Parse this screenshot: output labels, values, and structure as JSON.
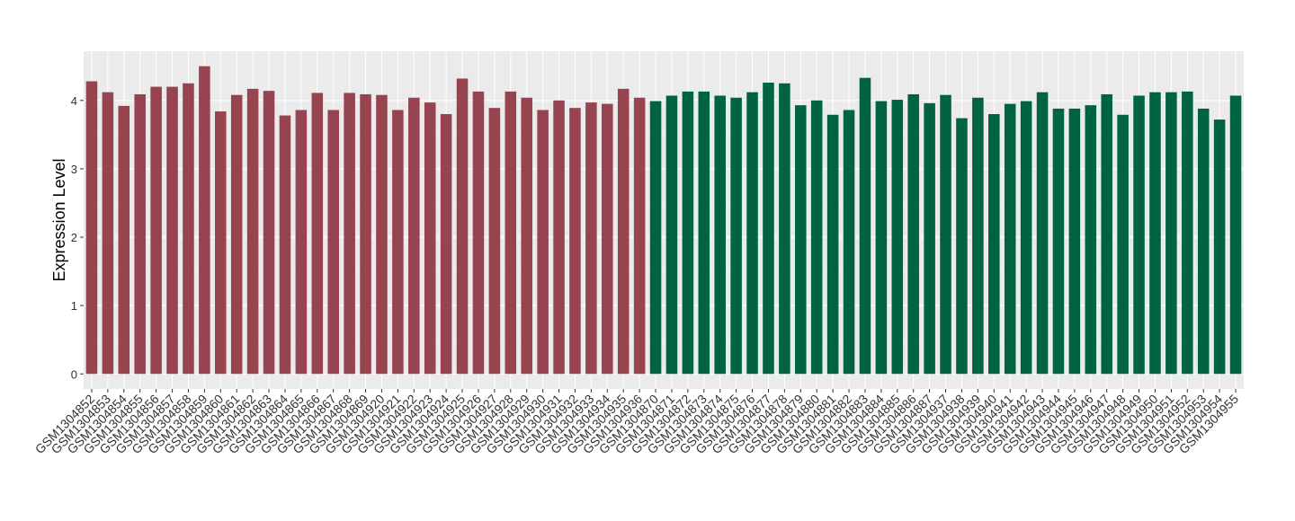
{
  "chart_data": {
    "type": "bar",
    "y_label": "Expression Level",
    "categories": [
      "GSM1304852",
      "GSM1304853",
      "GSM1304854",
      "GSM1304855",
      "GSM1304856",
      "GSM1304857",
      "GSM1304858",
      "GSM1304859",
      "GSM1304860",
      "GSM1304861",
      "GSM1304862",
      "GSM1304863",
      "GSM1304864",
      "GSM1304865",
      "GSM1304866",
      "GSM1304867",
      "GSM1304868",
      "GSM1304869",
      "GSM1304920",
      "GSM1304921",
      "GSM1304922",
      "GSM1304923",
      "GSM1304924",
      "GSM1304925",
      "GSM1304926",
      "GSM1304927",
      "GSM1304928",
      "GSM1304929",
      "GSM1304930",
      "GSM1304931",
      "GSM1304932",
      "GSM1304933",
      "GSM1304934",
      "GSM1304935",
      "GSM1304936",
      "GSM1304870",
      "GSM1304871",
      "GSM1304872",
      "GSM1304873",
      "GSM1304874",
      "GSM1304875",
      "GSM1304876",
      "GSM1304877",
      "GSM1304878",
      "GSM1304879",
      "GSM1304880",
      "GSM1304881",
      "GSM1304882",
      "GSM1304883",
      "GSM1304884",
      "GSM1304885",
      "GSM1304886",
      "GSM1304887",
      "GSM1304937",
      "GSM1304938",
      "GSM1304939",
      "GSM1304940",
      "GSM1304941",
      "GSM1304942",
      "GSM1304943",
      "GSM1304944",
      "GSM1304945",
      "GSM1304946",
      "GSM1304947",
      "GSM1304948",
      "GSM1304949",
      "GSM1304950",
      "GSM1304951",
      "GSM1304952",
      "GSM1304953",
      "GSM1304954",
      "GSM1304955"
    ],
    "values": [
      4.28,
      4.12,
      3.92,
      4.09,
      4.2,
      4.2,
      4.25,
      4.5,
      3.84,
      4.08,
      4.17,
      4.14,
      3.78,
      3.86,
      4.11,
      3.86,
      4.11,
      4.09,
      4.08,
      3.86,
      4.04,
      3.97,
      3.8,
      4.32,
      4.13,
      3.89,
      4.13,
      4.04,
      3.86,
      4.0,
      3.89,
      3.97,
      3.95,
      4.17,
      4.04,
      3.99,
      4.07,
      4.13,
      4.13,
      4.07,
      4.04,
      4.12,
      4.26,
      4.25,
      3.93,
      4.0,
      3.79,
      3.86,
      4.33,
      3.99,
      4.01,
      4.09,
      3.96,
      4.08,
      3.74,
      4.04,
      3.8,
      3.95,
      3.99,
      4.12,
      3.88,
      3.88,
      3.93,
      4.09,
      3.79,
      4.07,
      4.12,
      4.12,
      4.13,
      3.88,
      3.72,
      4.07
    ],
    "colors": [
      "#964450",
      "#964450",
      "#964450",
      "#964450",
      "#964450",
      "#964450",
      "#964450",
      "#964450",
      "#964450",
      "#964450",
      "#964450",
      "#964450",
      "#964450",
      "#964450",
      "#964450",
      "#964450",
      "#964450",
      "#964450",
      "#964450",
      "#964450",
      "#964450",
      "#964450",
      "#964450",
      "#964450",
      "#964450",
      "#964450",
      "#964450",
      "#964450",
      "#964450",
      "#964450",
      "#964450",
      "#964450",
      "#964450",
      "#964450",
      "#964450",
      "#006442",
      "#006442",
      "#006442",
      "#006442",
      "#006442",
      "#006442",
      "#006442",
      "#006442",
      "#006442",
      "#006442",
      "#006442",
      "#006442",
      "#006442",
      "#006442",
      "#006442",
      "#006442",
      "#006442",
      "#006442",
      "#006442",
      "#006442",
      "#006442",
      "#006442",
      "#006442",
      "#006442",
      "#006442",
      "#006442",
      "#006442",
      "#006442",
      "#006442",
      "#006442",
      "#006442",
      "#006442",
      "#006442",
      "#006442",
      "#006442",
      "#006442",
      "#006442"
    ],
    "ylim": [
      -0.22,
      4.72
    ],
    "yticks": [
      0,
      1,
      2,
      3,
      4
    ],
    "grid": true
  }
}
